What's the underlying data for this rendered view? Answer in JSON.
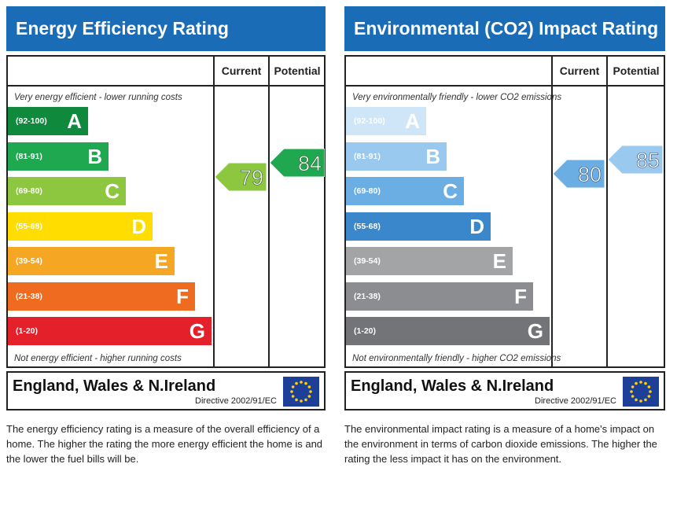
{
  "colors": {
    "header": "#1a6cb6",
    "ee": [
      "#0f8a3c",
      "#1fa84f",
      "#8dc63f",
      "#ffdd00",
      "#f5a623",
      "#ef6b1f",
      "#e4202a"
    ],
    "ei": [
      "#cfe6f8",
      "#99c9ef",
      "#6aaee3",
      "#3a87cc",
      "#a3a4a6",
      "#8c8d90",
      "#737477"
    ]
  },
  "chart_data": [
    {
      "type": "bar",
      "title": "Energy Efficiency Rating",
      "columns": [
        "Current",
        "Potential"
      ],
      "top_caption": "Very energy efficient - lower running costs",
      "bottom_caption": "Not energy efficient - higher running costs",
      "bands": [
        {
          "range": "(92-100)",
          "letter": "A"
        },
        {
          "range": "(81-91)",
          "letter": "B"
        },
        {
          "range": "(69-80)",
          "letter": "C"
        },
        {
          "range": "(55-68)",
          "letter": "D"
        },
        {
          "range": "(39-54)",
          "letter": "E"
        },
        {
          "range": "(21-38)",
          "letter": "F"
        },
        {
          "range": "(1-20)",
          "letter": "G"
        }
      ],
      "current": 79,
      "potential": 84
    },
    {
      "type": "bar",
      "title": "Environmental (CO2) Impact Rating",
      "columns": [
        "Current",
        "Potential"
      ],
      "top_caption": "Very environmentally friendly - lower CO2 emissions",
      "bottom_caption": "Not environmentally friendly - higher CO2 emissions",
      "bands": [
        {
          "range": "(92-100)",
          "letter": "A"
        },
        {
          "range": "(81-91)",
          "letter": "B"
        },
        {
          "range": "(69-80)",
          "letter": "C"
        },
        {
          "range": "(55-68)",
          "letter": "D"
        },
        {
          "range": "(39-54)",
          "letter": "E"
        },
        {
          "range": "(21-38)",
          "letter": "F"
        },
        {
          "range": "(1-20)",
          "letter": "G"
        }
      ],
      "current": 80,
      "potential": 85
    }
  ],
  "footer": {
    "country": "England, Wales & N.Ireland",
    "directive": "Directive 2002/91/EC"
  },
  "descriptions": {
    "ee": "The energy efficiency rating is a measure of the overall efficiency of a home. The higher the rating the more energy efficient the home is and the lower the fuel bills will be.",
    "ei": "The environmental impact rating is a measure of a home's impact on the environment in terms of carbon dioxide emissions. The higher the rating the less impact it has on the environment."
  }
}
